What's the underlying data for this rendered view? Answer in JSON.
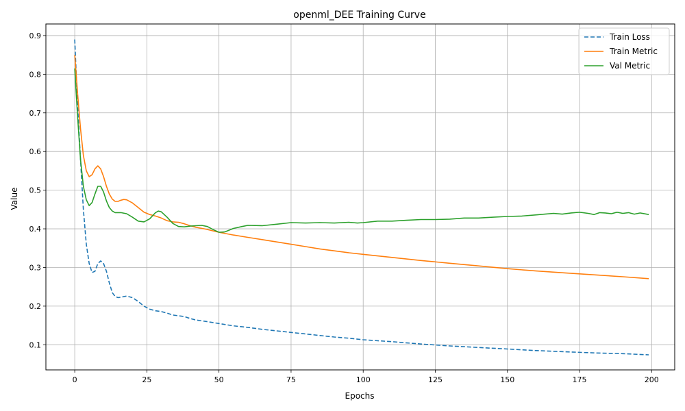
{
  "chart_data": {
    "type": "line",
    "title": "openml_DEE Training Curve",
    "xlabel": "Epochs",
    "ylabel": "Value",
    "xlim": [
      -10,
      208
    ],
    "ylim": [
      0.035,
      0.93
    ],
    "xticks": [
      0,
      25,
      50,
      75,
      100,
      125,
      150,
      175,
      200
    ],
    "yticks": [
      0.1,
      0.2,
      0.3,
      0.4,
      0.5,
      0.6,
      0.7,
      0.8,
      0.9
    ],
    "grid": true,
    "legend_position": "top-right",
    "series": [
      {
        "name": "Train Loss",
        "color": "#1f77b4",
        "dash": "dashed",
        "points": [
          [
            0,
            0.89
          ],
          [
            1,
            0.72
          ],
          [
            2,
            0.58
          ],
          [
            3,
            0.45
          ],
          [
            4,
            0.36
          ],
          [
            5,
            0.31
          ],
          [
            6,
            0.287
          ],
          [
            7,
            0.29
          ],
          [
            8,
            0.31
          ],
          [
            9,
            0.317
          ],
          [
            10,
            0.31
          ],
          [
            11,
            0.29
          ],
          [
            12,
            0.26
          ],
          [
            13,
            0.235
          ],
          [
            14,
            0.225
          ],
          [
            15,
            0.222
          ],
          [
            16,
            0.223
          ],
          [
            18,
            0.226
          ],
          [
            20,
            0.222
          ],
          [
            22,
            0.212
          ],
          [
            24,
            0.2
          ],
          [
            26,
            0.192
          ],
          [
            28,
            0.188
          ],
          [
            30,
            0.186
          ],
          [
            32,
            0.182
          ],
          [
            34,
            0.177
          ],
          [
            36,
            0.175
          ],
          [
            38,
            0.173
          ],
          [
            40,
            0.168
          ],
          [
            42,
            0.164
          ],
          [
            45,
            0.161
          ],
          [
            50,
            0.155
          ],
          [
            55,
            0.149
          ],
          [
            60,
            0.145
          ],
          [
            65,
            0.14
          ],
          [
            70,
            0.136
          ],
          [
            75,
            0.132
          ],
          [
            80,
            0.128
          ],
          [
            85,
            0.124
          ],
          [
            90,
            0.12
          ],
          [
            95,
            0.117
          ],
          [
            100,
            0.113
          ],
          [
            110,
            0.108
          ],
          [
            120,
            0.102
          ],
          [
            130,
            0.097
          ],
          [
            140,
            0.093
          ],
          [
            150,
            0.089
          ],
          [
            160,
            0.085
          ],
          [
            170,
            0.082
          ],
          [
            180,
            0.079
          ],
          [
            190,
            0.077
          ],
          [
            199,
            0.074
          ]
        ]
      },
      {
        "name": "Train Metric",
        "color": "#ff7f0e",
        "dash": "solid",
        "points": [
          [
            0,
            0.85
          ],
          [
            1,
            0.75
          ],
          [
            2,
            0.66
          ],
          [
            3,
            0.59
          ],
          [
            4,
            0.55
          ],
          [
            5,
            0.535
          ],
          [
            6,
            0.54
          ],
          [
            7,
            0.555
          ],
          [
            8,
            0.563
          ],
          [
            9,
            0.555
          ],
          [
            10,
            0.535
          ],
          [
            11,
            0.51
          ],
          [
            12,
            0.49
          ],
          [
            13,
            0.477
          ],
          [
            14,
            0.471
          ],
          [
            15,
            0.471
          ],
          [
            16,
            0.474
          ],
          [
            17,
            0.476
          ],
          [
            18,
            0.475
          ],
          [
            20,
            0.467
          ],
          [
            22,
            0.455
          ],
          [
            24,
            0.443
          ],
          [
            26,
            0.437
          ],
          [
            28,
            0.433
          ],
          [
            30,
            0.428
          ],
          [
            32,
            0.421
          ],
          [
            34,
            0.418
          ],
          [
            36,
            0.417
          ],
          [
            38,
            0.413
          ],
          [
            40,
            0.408
          ],
          [
            42,
            0.404
          ],
          [
            45,
            0.4
          ],
          [
            50,
            0.391
          ],
          [
            55,
            0.384
          ],
          [
            60,
            0.378
          ],
          [
            65,
            0.372
          ],
          [
            70,
            0.366
          ],
          [
            75,
            0.36
          ],
          [
            80,
            0.354
          ],
          [
            85,
            0.348
          ],
          [
            90,
            0.343
          ],
          [
            95,
            0.338
          ],
          [
            100,
            0.334
          ],
          [
            110,
            0.326
          ],
          [
            120,
            0.318
          ],
          [
            130,
            0.311
          ],
          [
            140,
            0.304
          ],
          [
            150,
            0.297
          ],
          [
            160,
            0.291
          ],
          [
            170,
            0.286
          ],
          [
            180,
            0.281
          ],
          [
            190,
            0.276
          ],
          [
            199,
            0.271
          ]
        ]
      },
      {
        "name": "Val Metric",
        "color": "#2ca02c",
        "dash": "solid",
        "points": [
          [
            0,
            0.815
          ],
          [
            1,
            0.69
          ],
          [
            2,
            0.58
          ],
          [
            3,
            0.51
          ],
          [
            4,
            0.475
          ],
          [
            5,
            0.46
          ],
          [
            6,
            0.468
          ],
          [
            7,
            0.49
          ],
          [
            8,
            0.51
          ],
          [
            9,
            0.51
          ],
          [
            10,
            0.495
          ],
          [
            11,
            0.472
          ],
          [
            12,
            0.455
          ],
          [
            13,
            0.446
          ],
          [
            14,
            0.442
          ],
          [
            16,
            0.442
          ],
          [
            18,
            0.439
          ],
          [
            20,
            0.43
          ],
          [
            22,
            0.42
          ],
          [
            24,
            0.418
          ],
          [
            26,
            0.426
          ],
          [
            28,
            0.442
          ],
          [
            29,
            0.446
          ],
          [
            30,
            0.444
          ],
          [
            32,
            0.43
          ],
          [
            34,
            0.414
          ],
          [
            36,
            0.406
          ],
          [
            38,
            0.405
          ],
          [
            40,
            0.407
          ],
          [
            42,
            0.408
          ],
          [
            44,
            0.409
          ],
          [
            46,
            0.406
          ],
          [
            48,
            0.398
          ],
          [
            50,
            0.391
          ],
          [
            52,
            0.392
          ],
          [
            55,
            0.401
          ],
          [
            58,
            0.406
          ],
          [
            60,
            0.409
          ],
          [
            65,
            0.408
          ],
          [
            70,
            0.412
          ],
          [
            75,
            0.416
          ],
          [
            80,
            0.415
          ],
          [
            85,
            0.416
          ],
          [
            90,
            0.415
          ],
          [
            95,
            0.417
          ],
          [
            98,
            0.415
          ],
          [
            100,
            0.416
          ],
          [
            105,
            0.42
          ],
          [
            110,
            0.42
          ],
          [
            115,
            0.422
          ],
          [
            120,
            0.424
          ],
          [
            125,
            0.424
          ],
          [
            130,
            0.425
          ],
          [
            135,
            0.428
          ],
          [
            140,
            0.428
          ],
          [
            145,
            0.43
          ],
          [
            150,
            0.432
          ],
          [
            155,
            0.433
          ],
          [
            160,
            0.436
          ],
          [
            163,
            0.438
          ],
          [
            166,
            0.44
          ],
          [
            169,
            0.438
          ],
          [
            172,
            0.441
          ],
          [
            175,
            0.443
          ],
          [
            178,
            0.44
          ],
          [
            180,
            0.437
          ],
          [
            182,
            0.442
          ],
          [
            184,
            0.441
          ],
          [
            186,
            0.439
          ],
          [
            188,
            0.443
          ],
          [
            190,
            0.44
          ],
          [
            192,
            0.442
          ],
          [
            194,
            0.438
          ],
          [
            196,
            0.441
          ],
          [
            199,
            0.437
          ]
        ]
      }
    ]
  }
}
